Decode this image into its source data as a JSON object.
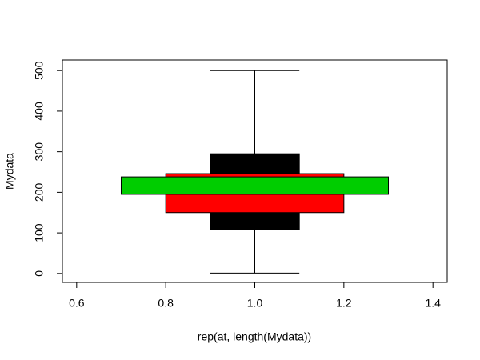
{
  "chart_data": {
    "type": "rectplot",
    "x_label": "rep(at, length(Mydata))",
    "y_label": "Mydata",
    "xlim": [
      0.568,
      1.432
    ],
    "ylim": [
      -22,
      526
    ],
    "xticks": [
      {
        "value": 0.6,
        "label": "0.6"
      },
      {
        "value": 0.8,
        "label": "0.8"
      },
      {
        "value": 1.0,
        "label": "1.0"
      },
      {
        "value": 1.2,
        "label": "1.2"
      },
      {
        "value": 1.4,
        "label": "1.4"
      }
    ],
    "yticks": [
      0,
      100,
      200,
      300,
      400,
      500
    ],
    "whisker": {
      "x": 1.0,
      "low": 1,
      "high": 500,
      "cap": [
        0.9,
        1.1
      ],
      "color": "#000000"
    },
    "boxes": [
      {
        "left": 0.9,
        "right": 1.1,
        "low": 108,
        "high": 295,
        "color": "#000000"
      },
      {
        "left": 0.8,
        "right": 1.2,
        "low": 150,
        "high": 246,
        "color": "#ff0000"
      },
      {
        "left": 0.7,
        "right": 1.3,
        "low": 195,
        "high": 238,
        "color": "#00cd00"
      }
    ]
  }
}
